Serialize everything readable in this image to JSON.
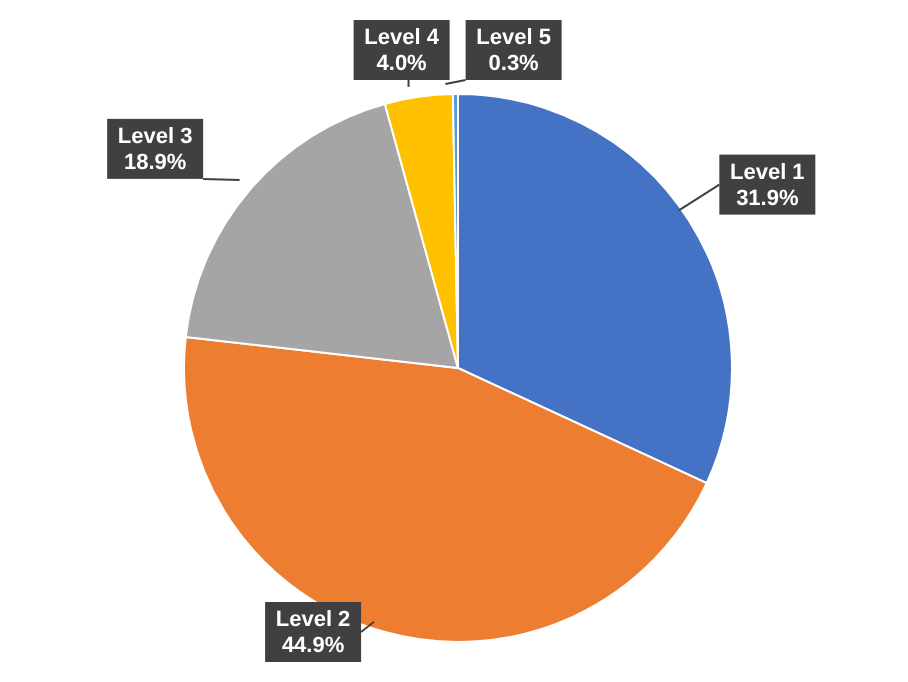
{
  "chart_data": {
    "type": "pie",
    "categories": [
      "Level 1",
      "Level 2",
      "Level 3",
      "Level 4",
      "Level 5"
    ],
    "values": [
      31.9,
      44.9,
      18.9,
      4.0,
      0.3
    ],
    "value_labels": [
      "31.9%",
      "44.9%",
      "18.9%",
      "4.0%",
      "0.3%"
    ],
    "colors": [
      "#4472c4",
      "#ed7d31",
      "#a5a5a5",
      "#ffc000",
      "#5b9bd5"
    ],
    "legend": false
  }
}
